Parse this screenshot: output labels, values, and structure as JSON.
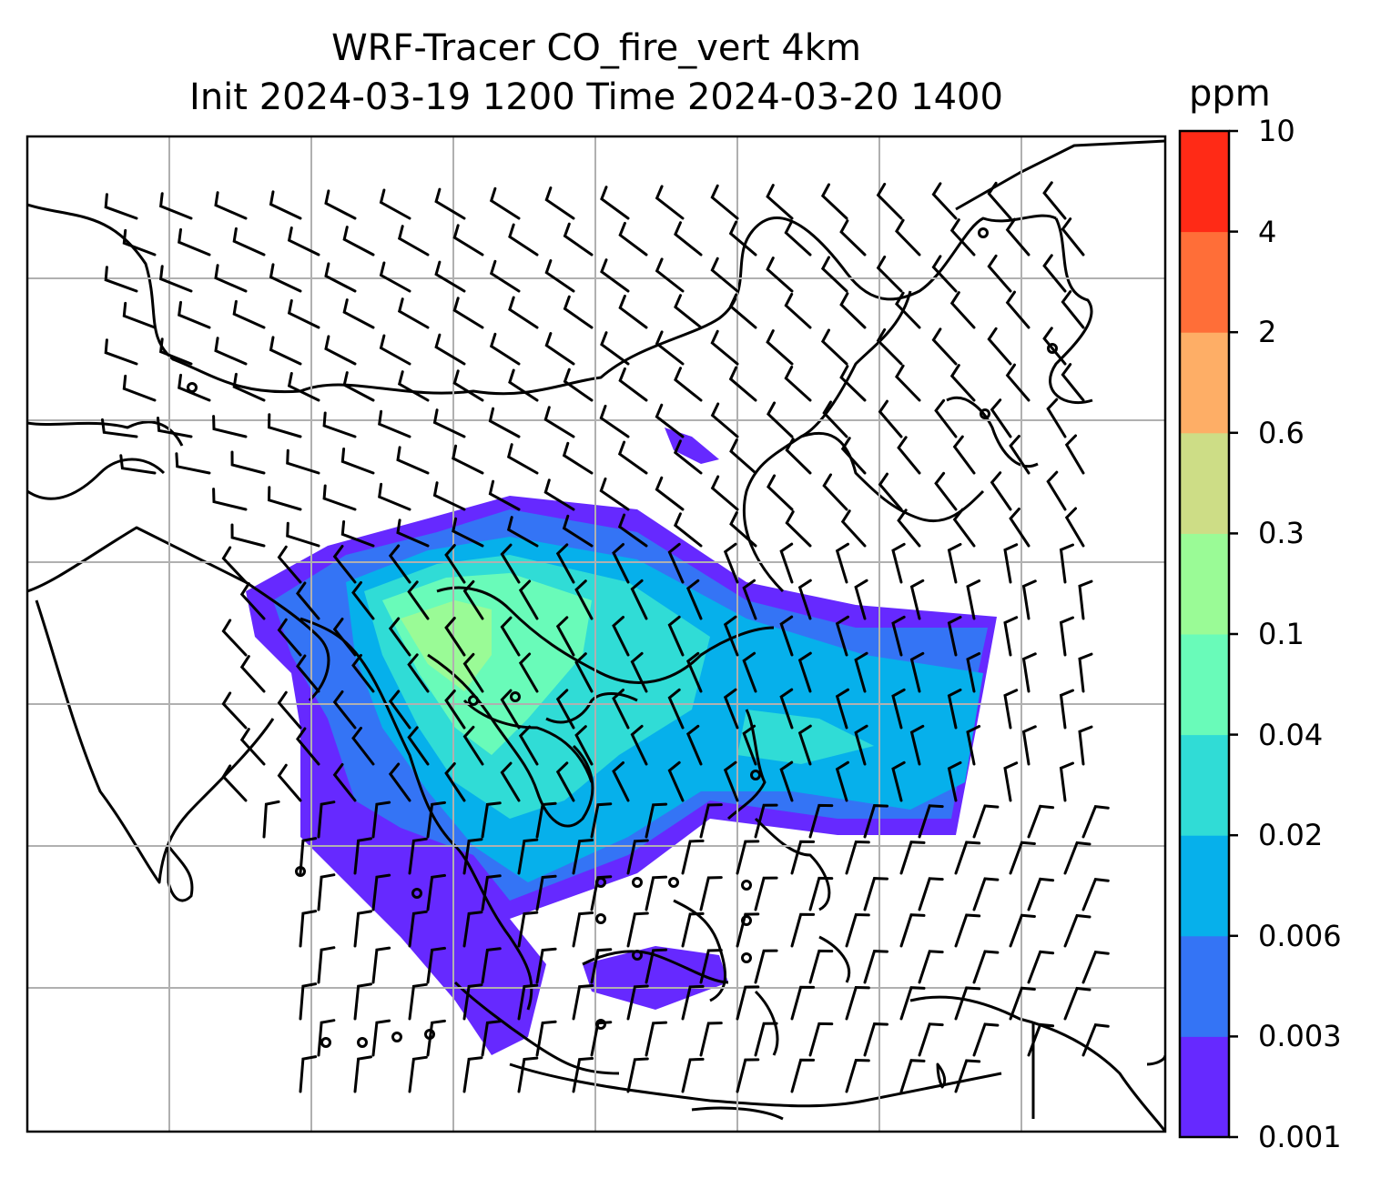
{
  "title_line1": "WRF-Tracer CO_fire_vert 4km",
  "title_line2": "Init 2024-03-19 1200 Time 2024-03-20 1400",
  "colorbar": {
    "unit": "ppm",
    "levels": [
      "0.001",
      "0.003",
      "0.006",
      "0.02",
      "0.04",
      "0.1",
      "0.3",
      "0.6",
      "2",
      "4",
      "10"
    ],
    "colors": [
      "#6629ff",
      "#3474f5",
      "#06b0eb",
      "#30dcd6",
      "#69fbb9",
      "#9afb96",
      "#cddd86",
      "#feae66",
      "#ff6e38",
      "#ff2a16"
    ]
  },
  "map": {
    "gridlines": true,
    "coastline_color": "#000000",
    "gridline_color": "#b0b0b0",
    "wind_barb_color": "#000000"
  }
}
